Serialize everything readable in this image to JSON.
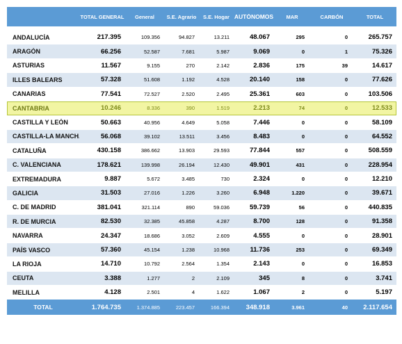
{
  "table": {
    "headers": {
      "region": "",
      "total_general": "TOTAL GENERAL",
      "general": "General",
      "agrario": "S.E. Agrario",
      "hogar": "S.E. Hogar",
      "autonomos": "AUTÓNOMOS",
      "mar": "MAR",
      "carbon": "CARBÓN",
      "total": "TOTAL"
    },
    "rows": [
      {
        "region": "ANDALUCÍA",
        "total_general": "217.395",
        "general": "109.356",
        "agrario": "94.827",
        "hogar": "13.211",
        "autonomos": "48.067",
        "mar": "295",
        "carbon": "0",
        "total": "265.757"
      },
      {
        "region": "ARAGÓN",
        "total_general": "66.256",
        "general": "52.587",
        "agrario": "7.681",
        "hogar": "5.987",
        "autonomos": "9.069",
        "mar": "0",
        "carbon": "1",
        "total": "75.326"
      },
      {
        "region": "ASTURIAS",
        "total_general": "11.567",
        "general": "9.155",
        "agrario": "270",
        "hogar": "2.142",
        "autonomos": "2.836",
        "mar": "175",
        "carbon": "39",
        "total": "14.617"
      },
      {
        "region": "ILLES BALEARS",
        "total_general": "57.328",
        "general": "51.608",
        "agrario": "1.192",
        "hogar": "4.528",
        "autonomos": "20.140",
        "mar": "158",
        "carbon": "0",
        "total": "77.626"
      },
      {
        "region": "CANARIAS",
        "total_general": "77.541",
        "general": "72.527",
        "agrario": "2.520",
        "hogar": "2.495",
        "autonomos": "25.361",
        "mar": "603",
        "carbon": "0",
        "total": "103.506"
      },
      {
        "region": "CANTABRIA",
        "total_general": "10.246",
        "general": "8.336",
        "agrario": "390",
        "hogar": "1.519",
        "autonomos": "2.213",
        "mar": "74",
        "carbon": "0",
        "total": "12.533"
      },
      {
        "region": "CASTILLA Y LEÓN",
        "total_general": "50.663",
        "general": "40.956",
        "agrario": "4.649",
        "hogar": "5.058",
        "autonomos": "7.446",
        "mar": "0",
        "carbon": "0",
        "total": "58.109"
      },
      {
        "region": "CASTILLA-LA MANCHA",
        "total_general": "56.068",
        "general": "39.102",
        "agrario": "13.511",
        "hogar": "3.456",
        "autonomos": "8.483",
        "mar": "0",
        "carbon": "0",
        "total": "64.552"
      },
      {
        "region": "CATALUÑA",
        "total_general": "430.158",
        "general": "386.662",
        "agrario": "13.903",
        "hogar": "29.593",
        "autonomos": "77.844",
        "mar": "557",
        "carbon": "0",
        "total": "508.559"
      },
      {
        "region": "C. VALENCIANA",
        "total_general": "178.621",
        "general": "139.998",
        "agrario": "26.194",
        "hogar": "12.430",
        "autonomos": "49.901",
        "mar": "431",
        "carbon": "0",
        "total": "228.954"
      },
      {
        "region": "EXTREMADURA",
        "total_general": "9.887",
        "general": "5.672",
        "agrario": "3.485",
        "hogar": "730",
        "autonomos": "2.324",
        "mar": "0",
        "carbon": "0",
        "total": "12.210"
      },
      {
        "region": "GALICIA",
        "total_general": "31.503",
        "general": "27.016",
        "agrario": "1.226",
        "hogar": "3.260",
        "autonomos": "6.948",
        "mar": "1.220",
        "carbon": "0",
        "total": "39.671"
      },
      {
        "region": "C. DE MADRID",
        "total_general": "381.041",
        "general": "321.114",
        "agrario": "890",
        "hogar": "59.036",
        "autonomos": "59.739",
        "mar": "56",
        "carbon": "0",
        "total": "440.835"
      },
      {
        "region": "R. DE MURCIA",
        "total_general": "82.530",
        "general": "32.385",
        "agrario": "45.858",
        "hogar": "4.287",
        "autonomos": "8.700",
        "mar": "128",
        "carbon": "0",
        "total": "91.358"
      },
      {
        "region": "NAVARRA",
        "total_general": "24.347",
        "general": "18.686",
        "agrario": "3.052",
        "hogar": "2.609",
        "autonomos": "4.555",
        "mar": "0",
        "carbon": "0",
        "total": "28.901"
      },
      {
        "region": "PAÍS VASCO",
        "total_general": "57.360",
        "general": "45.154",
        "agrario": "1.238",
        "hogar": "10.968",
        "autonomos": "11.736",
        "mar": "253",
        "carbon": "0",
        "total": "69.349"
      },
      {
        "region": "LA RIOJA",
        "total_general": "14.710",
        "general": "10.792",
        "agrario": "2.564",
        "hogar": "1.354",
        "autonomos": "2.143",
        "mar": "0",
        "carbon": "0",
        "total": "16.853"
      },
      {
        "region": "CEUTA",
        "total_general": "3.388",
        "general": "1.277",
        "agrario": "2",
        "hogar": "2.109",
        "autonomos": "345",
        "mar": "8",
        "carbon": "0",
        "total": "3.741"
      },
      {
        "region": "MELILLA",
        "total_general": "4.128",
        "general": "2.501",
        "agrario": "4",
        "hogar": "1.622",
        "autonomos": "1.067",
        "mar": "2",
        "carbon": "0",
        "total": "5.197"
      }
    ],
    "highlighted_row": 5,
    "footer": {
      "region": "TOTAL",
      "total_general": "1.764.735",
      "general": "1.374.885",
      "agrario": "223.457",
      "hogar": "166.394",
      "autonomos": "348.918",
      "mar": "3.961",
      "carbon": "40",
      "total": "2.117.654"
    },
    "colors": {
      "header_bg": "#5b9bd5",
      "band_bg": "#dce6f1",
      "highlight_bg": "#f2f5a3",
      "highlight_border": "#b4c436"
    }
  }
}
